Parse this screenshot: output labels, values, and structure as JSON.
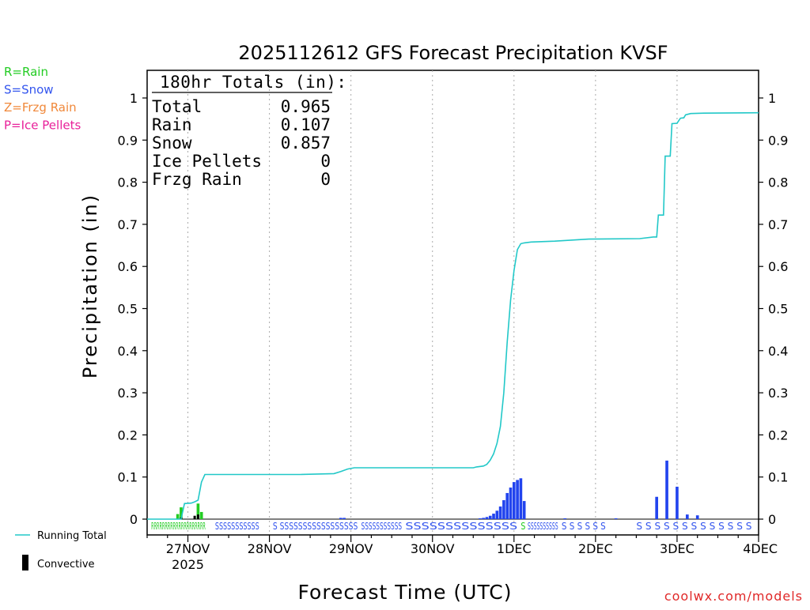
{
  "chart_data": {
    "type": "bar",
    "title": "2025112612 GFS Forecast Precipitation KVSF",
    "xlabel": "Forecast Time (UTC)",
    "ylabel": "Precipitation (in)",
    "ylim": [
      0,
      1.05
    ],
    "y_ticks": [
      0,
      0.1,
      0.2,
      0.3,
      0.4,
      0.5,
      0.6,
      0.7,
      0.8,
      0.9,
      1
    ],
    "y_tick_labels": [
      "0",
      "0.1",
      "0.2",
      "0.3",
      "0.4",
      "0.5",
      "0.6",
      "0.7",
      "0.8",
      "0.9",
      "1"
    ],
    "xlim_hours": [
      0,
      180
    ],
    "x_ticks": [
      {
        "hour": 12,
        "label": "27NOV",
        "sub": "2025"
      },
      {
        "hour": 36,
        "label": "28NOV",
        "sub": ""
      },
      {
        "hour": 60,
        "label": "29NOV",
        "sub": ""
      },
      {
        "hour": 84,
        "label": "30NOV",
        "sub": ""
      },
      {
        "hour": 108,
        "label": "1DEC",
        "sub": ""
      },
      {
        "hour": 132,
        "label": "2DEC",
        "sub": ""
      },
      {
        "hour": 156,
        "label": "3DEC",
        "sub": ""
      },
      {
        "hour": 180,
        "label": "4DEC",
        "sub": ""
      }
    ],
    "totals": {
      "header": "180hr Totals (in):",
      "rows": [
        {
          "label": "Total",
          "value": "0.965"
        },
        {
          "label": "Rain",
          "value": "0.107"
        },
        {
          "label": "Snow",
          "value": "0.857"
        },
        {
          "label": "Ice Pellets",
          "value": "0"
        },
        {
          "label": "Frzg Rain",
          "value": "0"
        }
      ]
    },
    "type_legend": [
      {
        "text": "R=Rain",
        "color": "#22cc22"
      },
      {
        "text": "S=Snow",
        "color": "#3355ee"
      },
      {
        "text": "Z=Frzg Rain",
        "color": "#f0883a"
      },
      {
        "text": "P=Ice Pellets",
        "color": "#e8209a"
      }
    ],
    "legend": {
      "running_total": "Running Total",
      "convective": "Convective"
    },
    "colors": {
      "rain": "#22cc22",
      "snow": "#2244ee",
      "running_total": "#22c8c8",
      "convective": "#000000",
      "grid": "#aaaaaa"
    },
    "series": [
      {
        "name": "Rain",
        "color": "#22cc22",
        "points": [
          [
            9,
            0.012
          ],
          [
            10,
            0.028
          ],
          [
            15,
            0.037
          ],
          [
            16,
            0.017
          ]
        ]
      },
      {
        "name": "Snow",
        "color": "#2244ee",
        "points": [
          [
            57,
            0.003
          ],
          [
            58,
            0.003
          ],
          [
            98,
            0.002
          ],
          [
            99,
            0.003
          ],
          [
            100,
            0.005
          ],
          [
            101,
            0.008
          ],
          [
            102,
            0.013
          ],
          [
            103,
            0.02
          ],
          [
            104,
            0.03
          ],
          [
            105,
            0.045
          ],
          [
            106,
            0.062
          ],
          [
            107,
            0.075
          ],
          [
            108,
            0.088
          ],
          [
            109,
            0.093
          ],
          [
            110,
            0.097
          ],
          [
            111,
            0.043
          ],
          [
            123,
            0.002
          ],
          [
            138,
            0.002
          ],
          [
            150,
            0.053
          ],
          [
            153,
            0.139
          ],
          [
            156,
            0.077
          ],
          [
            159,
            0.011
          ],
          [
            162,
            0.009
          ]
        ]
      },
      {
        "name": "Convective",
        "color": "#000000",
        "points": [
          [
            10,
            0.004
          ],
          [
            14,
            0.008
          ],
          [
            15,
            0.011
          ]
        ]
      }
    ],
    "running_total": [
      [
        0,
        0
      ],
      [
        10,
        0
      ],
      [
        11,
        0.037
      ],
      [
        13,
        0.038
      ],
      [
        14,
        0.041
      ],
      [
        15,
        0.045
      ],
      [
        16,
        0.088
      ],
      [
        17,
        0.106
      ],
      [
        19,
        0.106
      ],
      [
        45,
        0.106
      ],
      [
        55,
        0.108
      ],
      [
        57,
        0.113
      ],
      [
        59,
        0.119
      ],
      [
        61,
        0.122
      ],
      [
        96,
        0.122
      ],
      [
        97,
        0.124
      ],
      [
        99,
        0.126
      ],
      [
        100,
        0.13
      ],
      [
        101,
        0.14
      ],
      [
        102,
        0.155
      ],
      [
        103,
        0.18
      ],
      [
        104,
        0.22
      ],
      [
        105,
        0.3
      ],
      [
        106,
        0.42
      ],
      [
        107,
        0.52
      ],
      [
        108,
        0.59
      ],
      [
        109,
        0.64
      ],
      [
        110,
        0.654
      ],
      [
        111,
        0.656
      ],
      [
        113,
        0.658
      ],
      [
        120,
        0.66
      ],
      [
        130,
        0.665
      ],
      [
        145,
        0.666
      ],
      [
        149,
        0.67
      ],
      [
        150,
        0.67
      ],
      [
        150.5,
        0.722
      ],
      [
        152,
        0.722
      ],
      [
        152.5,
        0.862
      ],
      [
        154,
        0.862
      ],
      [
        154.5,
        0.939
      ],
      [
        156,
        0.94
      ],
      [
        157,
        0.952
      ],
      [
        158,
        0.953
      ],
      [
        158.5,
        0.96
      ],
      [
        159,
        0.961
      ],
      [
        160,
        0.963
      ],
      [
        164,
        0.964
      ],
      [
        180,
        0.965
      ]
    ],
    "type_strip": [
      {
        "text": "RRRRRRRRRRRRRRRRRRRR",
        "color": "#22cc22",
        "start_hour": 1.2,
        "end_hour": 17.2
      },
      {
        "text": "SSSSSSSSSSS",
        "color": "#3355ee",
        "start_hour": 20,
        "end_hour": 33
      },
      {
        "text": "S SSSSSSSSSSSSSSSSS",
        "color": "#3355ee",
        "start_hour": 37,
        "end_hour": 62
      },
      {
        "text": "SSSSSSSSSSS",
        "color": "#3355ee",
        "start_hour": 63,
        "end_hour": 75
      },
      {
        "text": "SSSSSSSSSSSSSS",
        "color": "#3355ee",
        "start_hour": 76,
        "end_hour": 109
      },
      {
        "text": "S",
        "color": "#22cc22",
        "start_hour": 110,
        "end_hour": 111
      },
      {
        "text": "SSSSSSSSSS",
        "color": "#3355ee",
        "start_hour": 112,
        "end_hour": 121
      },
      {
        "text": "S S S S S S",
        "color": "#3355ee",
        "start_hour": 122,
        "end_hour": 135
      },
      {
        "text": "S S S S S S S S S S S S S",
        "color": "#3355ee",
        "start_hour": 144,
        "end_hour": 178
      }
    ],
    "watermark": "coolwx.com/models"
  }
}
